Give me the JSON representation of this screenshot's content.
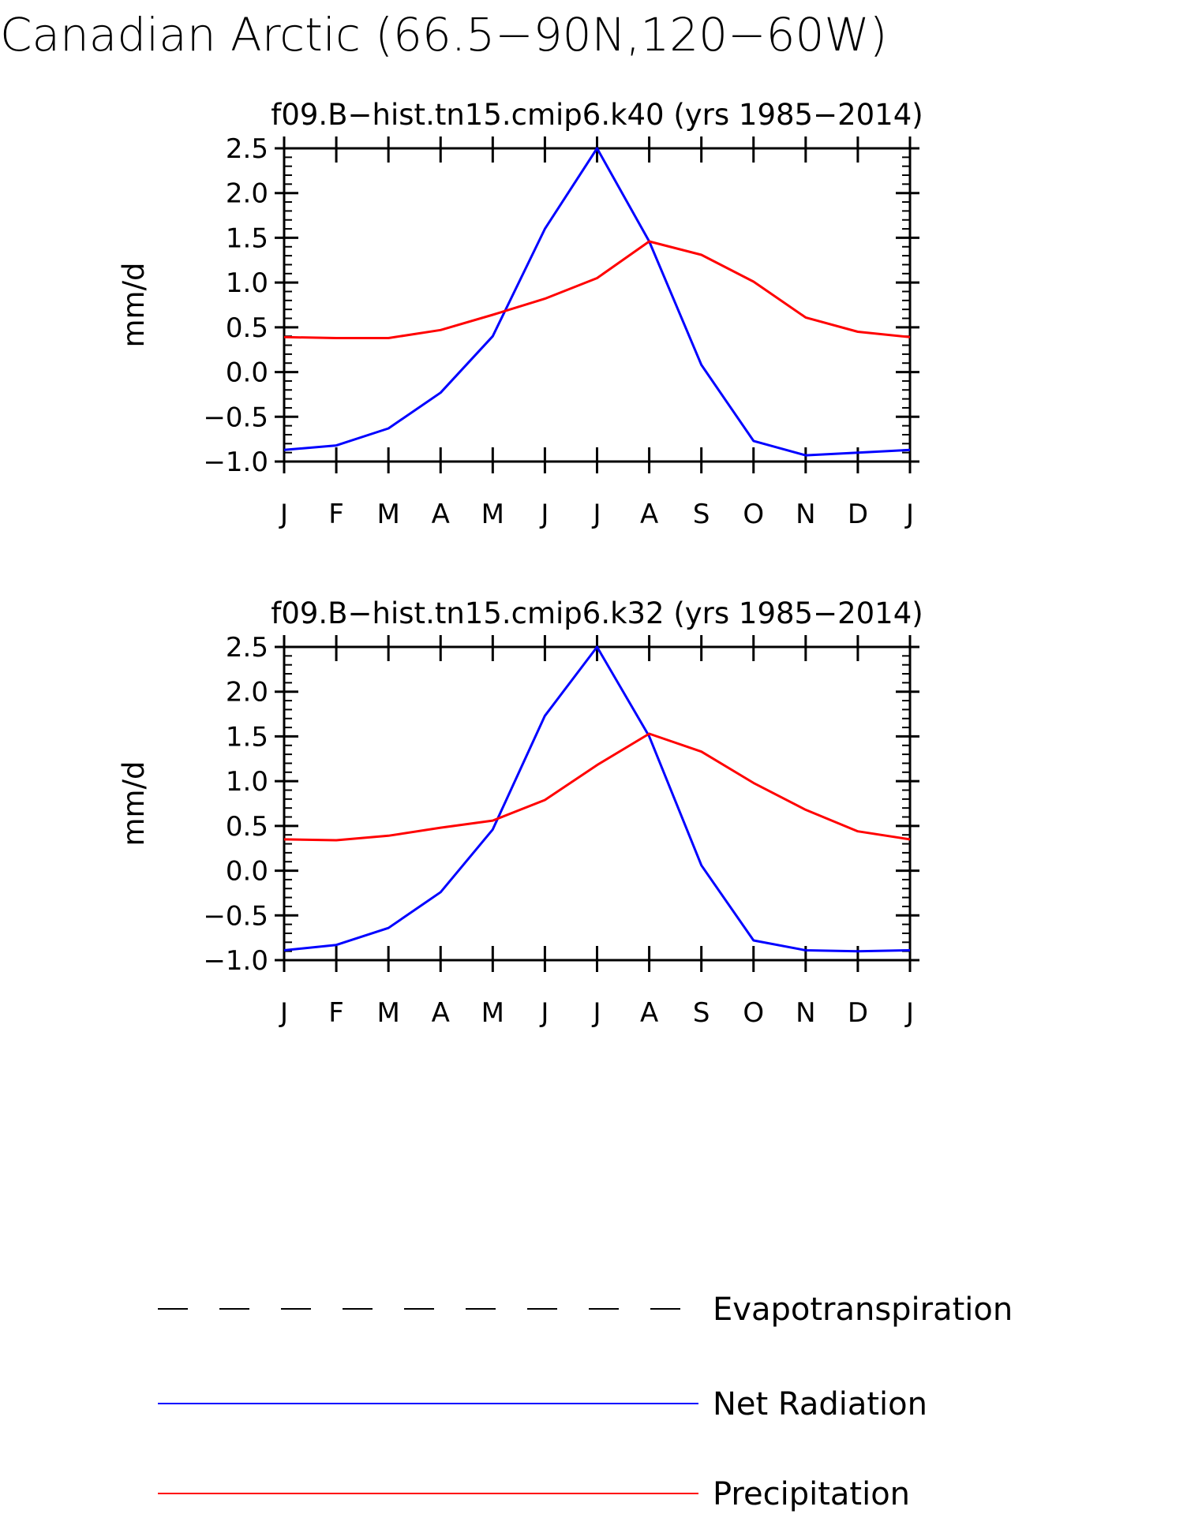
{
  "figure": {
    "title": "Canadian Arctic (66.5−90N,120−60W)"
  },
  "colors": {
    "net_radiation": "#0000ff",
    "precipitation": "#ff0000",
    "evapotranspiration": "#000000",
    "axes": "#000000"
  },
  "chart_data": [
    {
      "type": "line",
      "title": "f09.B−hist.tn15.cmip6.k40 (yrs 1985−2014)",
      "xlabel": "",
      "ylabel": "mm/d",
      "categories": [
        "J",
        "F",
        "M",
        "A",
        "M",
        "J",
        "J",
        "A",
        "S",
        "O",
        "N",
        "D",
        "J"
      ],
      "ylim": [
        -1.0,
        2.5
      ],
      "yticks": [
        "2.5",
        "2.0",
        "1.5",
        "1.0",
        "0.5",
        "0.0",
        "−0.5",
        "−1.0"
      ],
      "grid": false,
      "series": [
        {
          "name": "Net Radiation",
          "key": "net_radiation",
          "values": [
            -0.87,
            -0.82,
            -0.63,
            -0.23,
            0.4,
            1.6,
            2.5,
            1.46,
            0.08,
            -0.77,
            -0.93,
            -0.9,
            -0.87
          ]
        },
        {
          "name": "Precipitation",
          "key": "precipitation",
          "values": [
            0.39,
            0.38,
            0.38,
            0.47,
            0.64,
            0.82,
            1.05,
            1.46,
            1.31,
            1.01,
            0.61,
            0.45,
            0.39
          ]
        }
      ]
    },
    {
      "type": "line",
      "title": "f09.B−hist.tn15.cmip6.k32 (yrs 1985−2014)",
      "xlabel": "",
      "ylabel": "mm/d",
      "categories": [
        "J",
        "F",
        "M",
        "A",
        "M",
        "J",
        "J",
        "A",
        "S",
        "O",
        "N",
        "D",
        "J"
      ],
      "ylim": [
        -1.0,
        2.5
      ],
      "yticks": [
        "2.5",
        "2.0",
        "1.5",
        "1.0",
        "0.5",
        "0.0",
        "−0.5",
        "−1.0"
      ],
      "grid": false,
      "series": [
        {
          "name": "Net Radiation",
          "key": "net_radiation",
          "values": [
            -0.89,
            -0.83,
            -0.64,
            -0.24,
            0.46,
            1.73,
            2.5,
            1.5,
            0.06,
            -0.78,
            -0.89,
            -0.9,
            -0.89
          ]
        },
        {
          "name": "Precipitation",
          "key": "precipitation",
          "values": [
            0.35,
            0.34,
            0.39,
            0.48,
            0.56,
            0.79,
            1.18,
            1.53,
            1.33,
            0.98,
            0.68,
            0.44,
            0.35
          ]
        }
      ]
    }
  ],
  "legend": {
    "placement": "bottom",
    "items": [
      {
        "label": "Evapotranspiration",
        "key": "evapotranspiration",
        "style": "dashed"
      },
      {
        "label": "Net Radiation",
        "key": "net_radiation",
        "style": "solid"
      },
      {
        "label": "Precipitation",
        "key": "precipitation",
        "style": "solid"
      }
    ]
  }
}
